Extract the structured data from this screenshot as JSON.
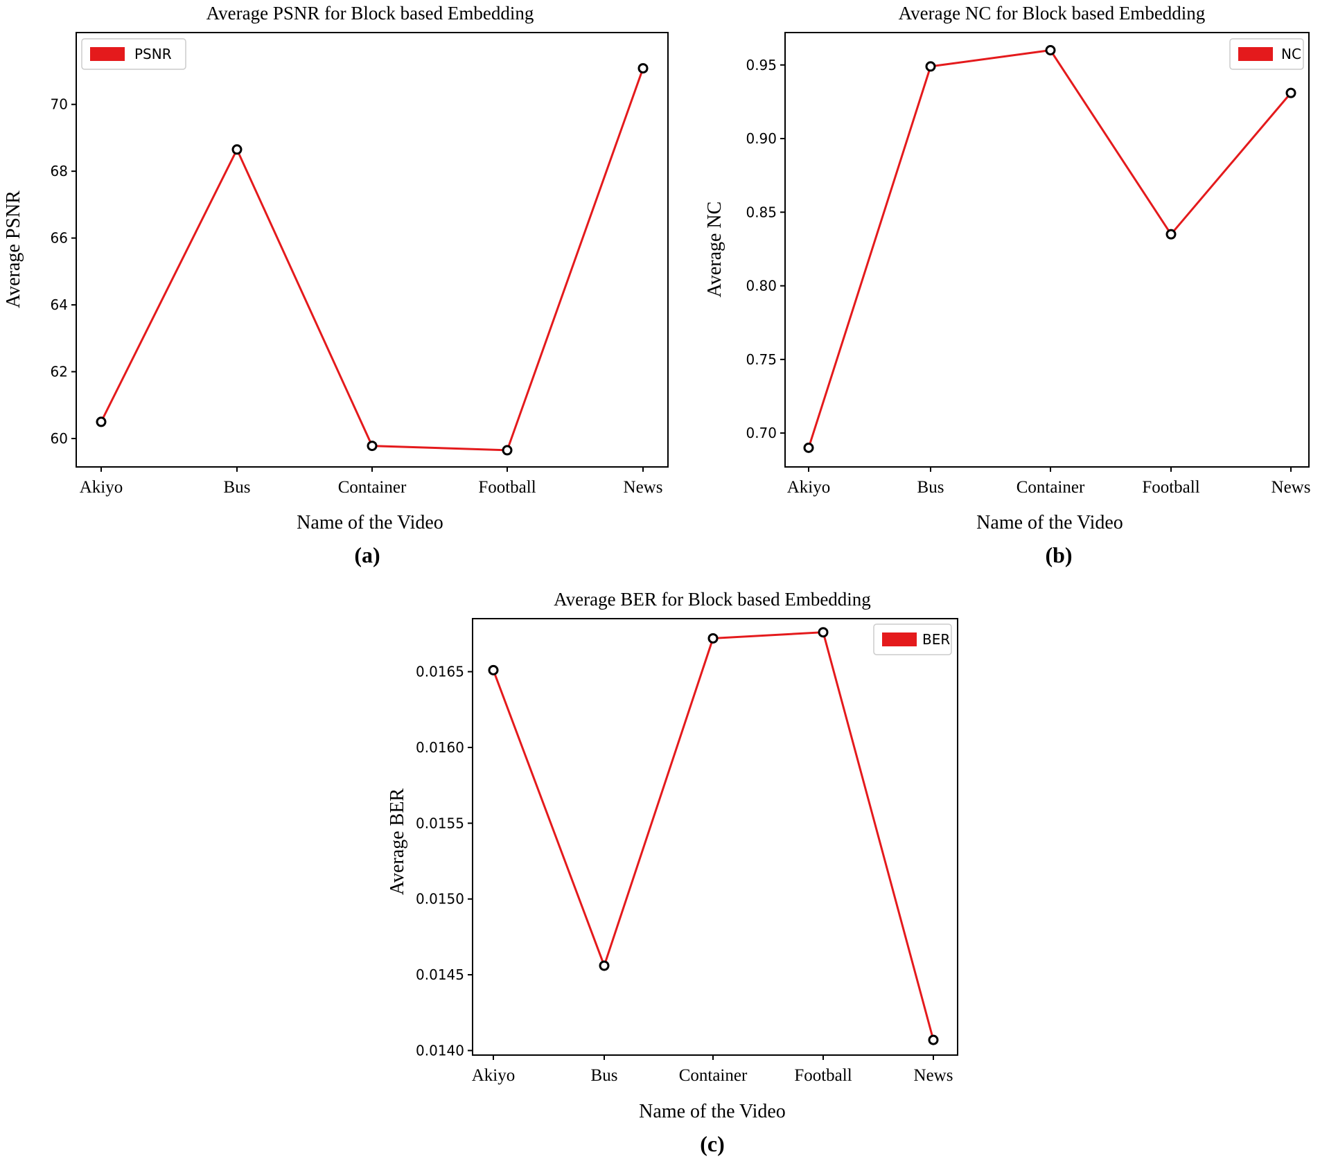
{
  "figure": {
    "captions": [
      "(a)",
      "(b)",
      "(c)"
    ]
  },
  "chart_data": [
    {
      "type": "line",
      "title": "Average PSNR for Block based Embedding",
      "xlabel": "Name of the Video",
      "ylabel": "Average PSNR",
      "categories": [
        "Akiyo",
        "Bus",
        "Container",
        "Football",
        "News"
      ],
      "series": [
        {
          "name": "PSNR",
          "values": [
            60.5,
            68.65,
            59.78,
            59.65,
            71.08
          ]
        }
      ],
      "ylim": [
        59.15,
        72.15
      ],
      "yticks": [
        60,
        62,
        64,
        66,
        68,
        70
      ],
      "ytick_labels": [
        "60",
        "62",
        "64",
        "66",
        "68",
        "70"
      ],
      "legend_position": "top-left",
      "grid": false,
      "color": "#e41a1c"
    },
    {
      "type": "line",
      "title": "Average NC for Block based Embedding",
      "xlabel": "Name of the Video",
      "ylabel": "Average NC",
      "categories": [
        "Akiyo",
        "Bus",
        "Container",
        "Football",
        "News"
      ],
      "series": [
        {
          "name": "NC",
          "values": [
            0.69,
            0.949,
            0.96,
            0.835,
            0.931
          ]
        }
      ],
      "ylim": [
        0.677,
        0.972
      ],
      "yticks": [
        0.7,
        0.75,
        0.8,
        0.85,
        0.9,
        0.95
      ],
      "ytick_labels": [
        "0.70",
        "0.75",
        "0.80",
        "0.85",
        "0.90",
        "0.95"
      ],
      "legend_position": "top-right",
      "grid": false,
      "color": "#e41a1c"
    },
    {
      "type": "line",
      "title": "Average BER for Block based Embedding",
      "xlabel": "Name of the Video",
      "ylabel": "Average BER",
      "categories": [
        "Akiyo",
        "Bus",
        "Container",
        "Football",
        "News"
      ],
      "series": [
        {
          "name": "BER",
          "values": [
            0.01651,
            0.01456,
            0.01672,
            0.01676,
            0.01407
          ]
        }
      ],
      "ylim": [
        0.01397,
        0.01685
      ],
      "yticks": [
        0.014,
        0.0145,
        0.015,
        0.0155,
        0.016,
        0.0165
      ],
      "ytick_labels": [
        "0.0140",
        "0.0145",
        "0.0150",
        "0.0155",
        "0.0160",
        "0.0165"
      ],
      "legend_position": "top-right",
      "grid": false,
      "color": "#e41a1c"
    }
  ]
}
